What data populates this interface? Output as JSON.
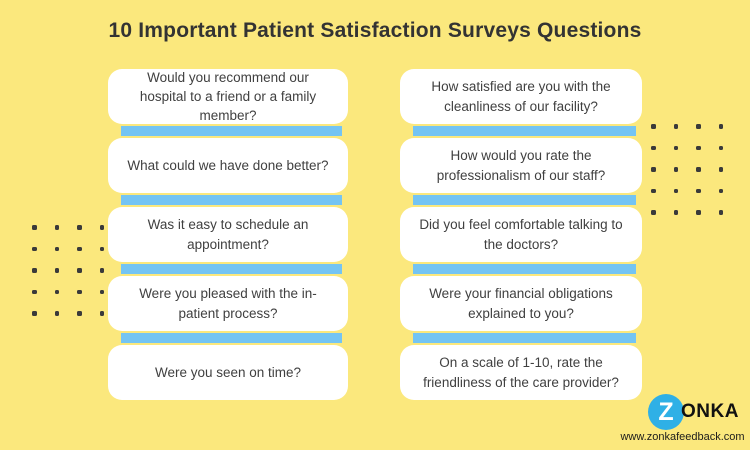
{
  "title": "10 Important Patient Satisfaction Surveys Questions",
  "columns": {
    "left": [
      "Would you recommend our hospital to a friend or a family member?",
      "What could we have done better?",
      "Was it easy to schedule an appointment?",
      "Were you pleased with the in-patient process?",
      "Were you seen on time?"
    ],
    "right": [
      "How satisfied are you with the cleanliness of our facility?",
      "How would you rate the professionalism of our staff?",
      "Did you feel comfortable talking to the doctors?",
      "Were your financial obligations explained to you?",
      "On a scale of 1-10, rate the friendliness of the care provider?"
    ]
  },
  "branding": {
    "logo_z": "Z",
    "logo_rest": "onka",
    "website": "www.zonkafeedback.com"
  },
  "decor": {
    "dot_grid_columns": 4,
    "dot_grid_rows": 5
  },
  "colors": {
    "background": "#FBE87D",
    "card": "#FFFFFF",
    "accent_bar": "#74C4F3",
    "logo_circle": "#2FB0E6",
    "title_text": "#333333",
    "question_text": "#404040",
    "dot": "#3A3A3A"
  }
}
